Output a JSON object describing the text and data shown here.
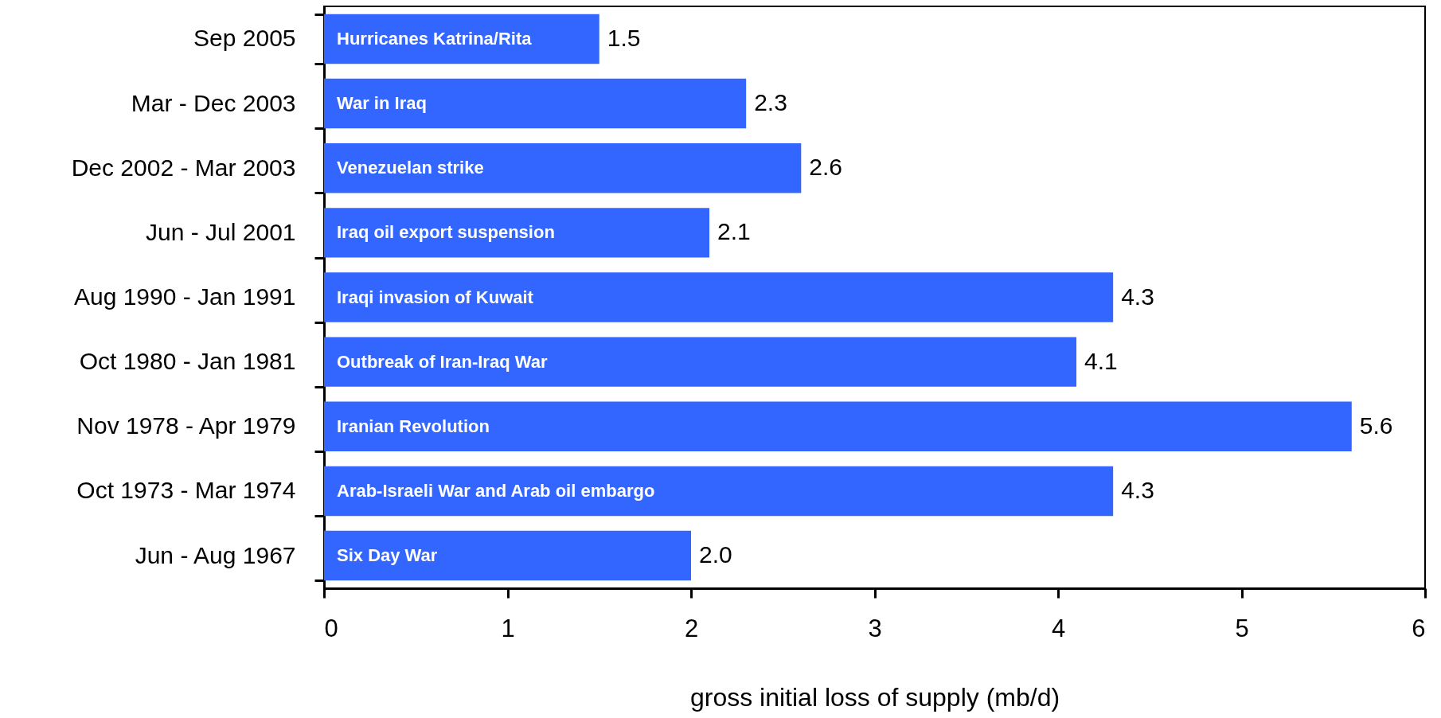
{
  "chart_data": {
    "type": "bar",
    "orientation": "horizontal",
    "categories": [
      "Sep 2005",
      "Mar - Dec 2003",
      "Dec 2002 - Mar 2003",
      "Jun - Jul 2001",
      "Aug 1990 - Jan 1991",
      "Oct 1980 - Jan 1981",
      "Nov 1978 - Apr 1979",
      "Oct 1973 - Mar 1974",
      "Jun - Aug 1967"
    ],
    "values": [
      1.5,
      2.3,
      2.6,
      2.1,
      4.3,
      4.1,
      5.6,
      4.3,
      2.0
    ],
    "value_labels": [
      "1.5",
      "2.3",
      "2.6",
      "2.1",
      "4.3",
      "4.1",
      "5.6",
      "4.3",
      "2.0"
    ],
    "color": "#3366ff",
    "xlabel": "gross initial loss of supply (mb/d)",
    "xlim": [
      0,
      6
    ],
    "xticks": [
      0,
      1,
      2,
      3,
      4,
      5,
      6
    ],
    "grid": false,
    "annotations": [
      {
        "text": "Hurricanes Katrina/Rita",
        "y": "Sep 2005"
      },
      {
        "text": "War in Iraq",
        "y": "Mar - Dec 2003"
      },
      {
        "text": "Venezuelan strike",
        "y": "Dec 2002 - Mar 2003"
      },
      {
        "text": "Iraq oil export suspension",
        "y": "Jun - Jul 2001"
      },
      {
        "text": "Iraqi invasion of Kuwait",
        "y": "Aug 1990 - Jan 1991"
      },
      {
        "text": "Outbreak of Iran-Iraq War",
        "y": "Oct 1980 - Jan 1981"
      },
      {
        "text": "Iranian Revolution",
        "y": "Nov 1978 - Apr 1979"
      },
      {
        "text": "Arab-Israeli War and Arab oil embargo",
        "y": "Oct 1973 - Mar 1974"
      },
      {
        "text": "Six Day War",
        "y": "Jun - Aug 1967"
      }
    ]
  }
}
